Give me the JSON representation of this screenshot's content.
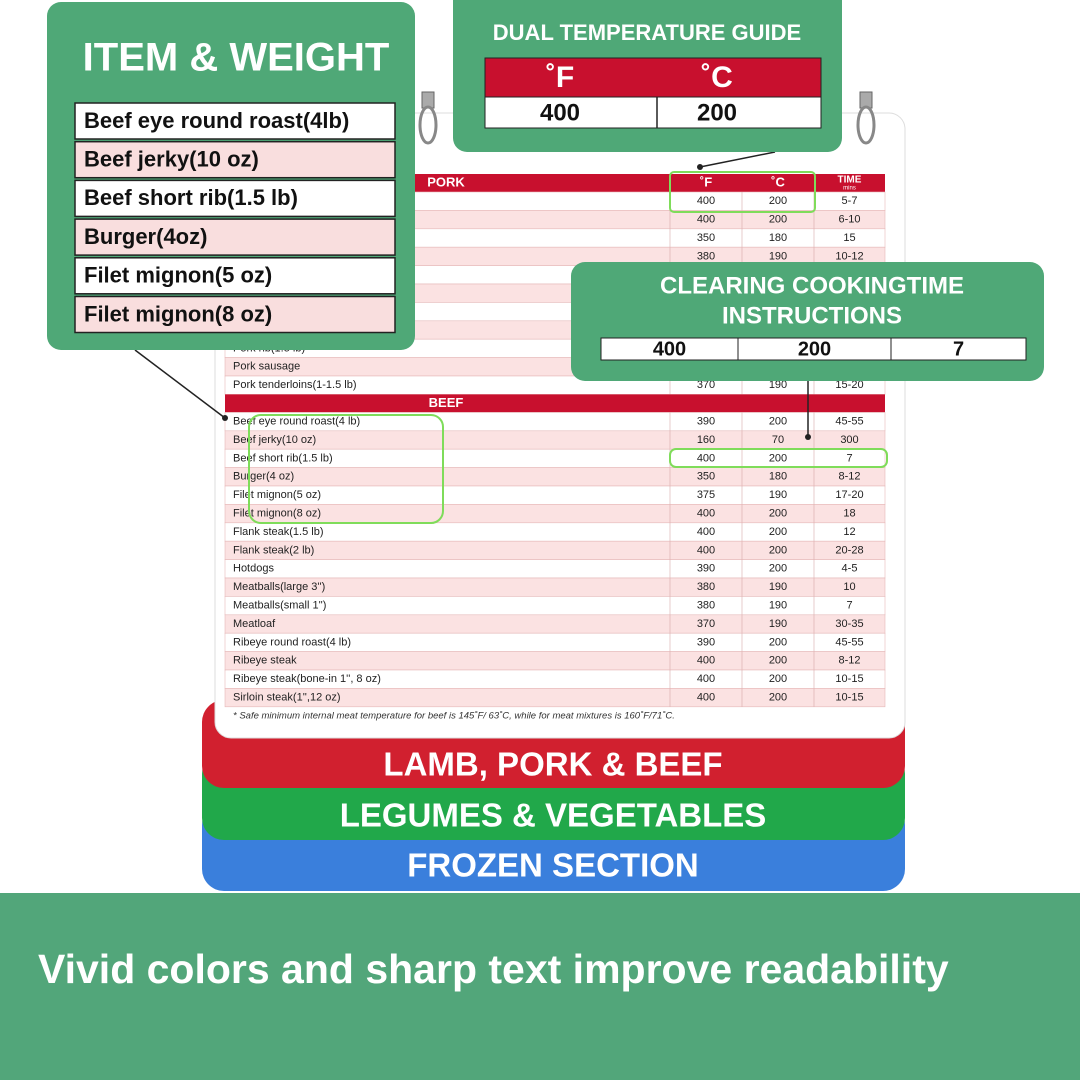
{
  "item_weight": {
    "title": "ITEM & WEIGHT",
    "items": [
      "Beef eye round roast(4lb)",
      "Beef jerky(10 oz)",
      "Beef short rib(1.5 lb)",
      "Burger(4oz)",
      "Filet mignon(5 oz)",
      "Filet mignon(8 oz)"
    ]
  },
  "temperature_guide": {
    "title": "DUAL TEMPERATURE GUIDE",
    "headers": [
      "˚F",
      "˚C"
    ],
    "values": [
      "400",
      "200"
    ]
  },
  "cooking_time": {
    "title_lines": [
      "CLEARING COOKINGTIME",
      "INSTRUCTIONS"
    ],
    "values": [
      "400",
      "200",
      "7"
    ]
  },
  "chart": {
    "columns": [
      "˚F",
      "˚C",
      "TIME"
    ],
    "time_unit": "mins",
    "pork": {
      "header": "PORK",
      "rows": [
        {
          "f": "400",
          "c": "200",
          "time": "5-7"
        },
        {
          "f": "400",
          "c": "200",
          "time": "6-10"
        },
        {
          "f": "350",
          "c": "180",
          "time": "15"
        },
        {
          "f": "380",
          "c": "190",
          "time": "10-12"
        },
        {
          "name": "Pork rib(1.5 lb)"
        },
        {
          "name": "Pork sausage"
        },
        {
          "name": "Pork tenderloins(1-1.5 lb)",
          "f": "370",
          "c": "190",
          "time": "15-20"
        }
      ]
    },
    "beef": {
      "header": "BEEF",
      "rows": [
        {
          "name": "Beef eye round roast(4 lb)",
          "f": "390",
          "c": "200",
          "time": "45-55"
        },
        {
          "name": "Beef jerky(10 oz)",
          "f": "160",
          "c": "70",
          "time": "300"
        },
        {
          "name": "Beef short rib(1.5 lb)",
          "f": "400",
          "c": "200",
          "time": "7"
        },
        {
          "name": "Burger(4 oz)",
          "f": "350",
          "c": "180",
          "time": "8-12"
        },
        {
          "name": "Filet mignon(5 oz)",
          "f": "375",
          "c": "190",
          "time": "17-20"
        },
        {
          "name": "Filet mignon(8 oz)",
          "f": "400",
          "c": "200",
          "time": "18"
        },
        {
          "name": "Flank steak(1.5 lb)",
          "f": "400",
          "c": "200",
          "time": "12"
        },
        {
          "name": "Flank steak(2 lb)",
          "f": "400",
          "c": "200",
          "time": "20-28"
        },
        {
          "name": "Hotdogs",
          "f": "390",
          "c": "200",
          "time": "4-5"
        },
        {
          "name": "Meatballs(large 3'')",
          "f": "380",
          "c": "190",
          "time": "10"
        },
        {
          "name": "Meatballs(small 1'')",
          "f": "380",
          "c": "190",
          "time": "7"
        },
        {
          "name": "Meatloaf",
          "f": "370",
          "c": "190",
          "time": "30-35"
        },
        {
          "name": "Ribeye round roast(4 lb)",
          "f": "390",
          "c": "200",
          "time": "45-55"
        },
        {
          "name": "Ribeye steak",
          "f": "400",
          "c": "200",
          "time": "8-12"
        },
        {
          "name": "Ribeye steak(bone-in 1'', 8 oz)",
          "f": "400",
          "c": "200",
          "time": "10-15"
        },
        {
          "name": "Sirloin steak(1'',12 oz)",
          "f": "400",
          "c": "200",
          "time": "10-15"
        }
      ]
    },
    "footnote": "* Safe minimum internal meat temperature for beef is 145˚F/ 63˚C, while for meat mixtures is 160˚F/71˚C."
  },
  "tabs": [
    "LAMB, PORK & BEEF",
    "LEGUMES & VEGETABLES",
    "FROZEN SECTION"
  ],
  "banner": "Vivid colors and sharp text improve readability"
}
